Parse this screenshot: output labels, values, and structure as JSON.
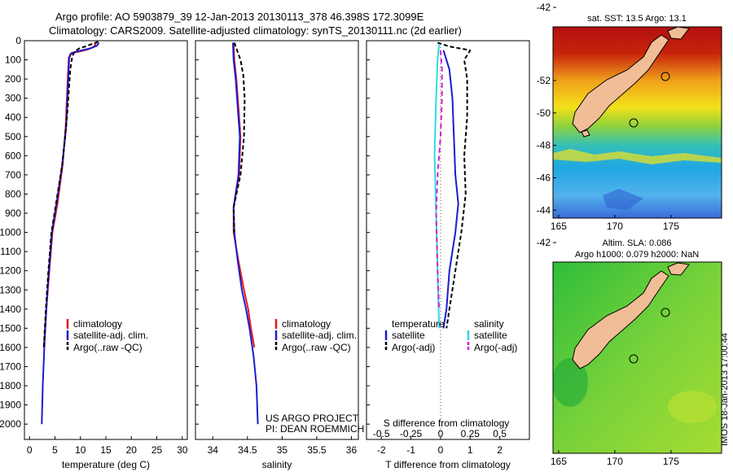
{
  "header": {
    "line1": "Argo profile: AO 5903879_39 12-Jan-2013 20130113_378 46.398S 172.3099E",
    "line2": "Climatology: CARS2009. Satellite-adjusted climatology: synTS_20130111.nc (2d earlier)"
  },
  "colors": {
    "climatology": "#e8161b",
    "satellite": "#1c1ccf",
    "argo": "#000000",
    "satellite_s": "#32d9e6",
    "argo_s": "#d21ed2"
  },
  "chart_data": [
    {
      "name": "temperature-profile",
      "type": "line",
      "xlabel": "temperature (deg C)",
      "ylabel": "",
      "xlim": [
        -1,
        31
      ],
      "ylim": [
        2080,
        0
      ],
      "xticks": [
        0,
        5,
        10,
        15,
        20,
        25,
        30
      ],
      "yticks": [
        0,
        100,
        200,
        300,
        400,
        500,
        600,
        700,
        800,
        900,
        1000,
        1100,
        1200,
        1300,
        1400,
        1500,
        1600,
        1700,
        1800,
        1900,
        2000
      ],
      "legend": [
        "climatology",
        "satellite-adj. clim.",
        "Argo(..raw -QC)"
      ],
      "series": [
        {
          "name": "climatology",
          "color": "#e8161b",
          "dash": "",
          "points": [
            [
              13.1,
              10
            ],
            [
              12.7,
              30
            ],
            [
              11.5,
              45
            ],
            [
              10,
              55
            ],
            [
              8.8,
              62
            ],
            [
              8.0,
              70
            ],
            [
              7.7,
              90
            ],
            [
              7.5,
              200
            ],
            [
              7.1,
              450
            ],
            [
              6.5,
              650
            ],
            [
              5.5,
              850
            ],
            [
              4.5,
              1000
            ],
            [
              3.9,
              1200
            ],
            [
              3.3,
              1400
            ],
            [
              2.8,
              1600
            ]
          ]
        },
        {
          "name": "satellite-adj. clim.",
          "color": "#1c1ccf",
          "dash": "",
          "points": [
            [
              13.6,
              10
            ],
            [
              13.3,
              25
            ],
            [
              12.0,
              40
            ],
            [
              10.3,
              50
            ],
            [
              9.0,
              58
            ],
            [
              8.2,
              65
            ],
            [
              7.8,
              90
            ],
            [
              7.6,
              200
            ],
            [
              7.2,
              450
            ],
            [
              6.4,
              650
            ],
            [
              5.3,
              850
            ],
            [
              4.4,
              1000
            ],
            [
              3.8,
              1200
            ],
            [
              3.3,
              1400
            ],
            [
              2.9,
              1600
            ],
            [
              2.6,
              1800
            ],
            [
              2.4,
              2000
            ]
          ]
        },
        {
          "name": "Argo",
          "color": "#000000",
          "dash": "5,3",
          "points": [
            [
              13.5,
              5
            ],
            [
              12.5,
              15
            ],
            [
              11.0,
              30
            ],
            [
              9.8,
              40
            ],
            [
              8.9,
              55
            ],
            [
              8.4,
              80
            ],
            [
              8.0,
              150
            ],
            [
              7.5,
              350
            ],
            [
              7.0,
              500
            ],
            [
              6.4,
              650
            ],
            [
              5.2,
              850
            ],
            [
              4.3,
              1000
            ],
            [
              3.7,
              1200
            ],
            [
              3.2,
              1400
            ],
            [
              2.8,
              1600
            ]
          ]
        }
      ]
    },
    {
      "name": "salinity-profile",
      "type": "line",
      "xlabel": "salinity",
      "ylabel": "",
      "xlim": [
        33.75,
        36.1
      ],
      "ylim": [
        2080,
        0
      ],
      "xticks": [
        34,
        34.5,
        35,
        35.5,
        36
      ],
      "legend": [
        "climatology",
        "satellite-adj. clim.",
        "Argo(..raw -QC)"
      ],
      "series": [
        {
          "name": "climatology",
          "color": "#e8161b",
          "dash": "",
          "points": [
            [
              34.3,
              10
            ],
            [
              34.31,
              100
            ],
            [
              34.34,
              200
            ],
            [
              34.37,
              350
            ],
            [
              34.4,
              500
            ],
            [
              34.38,
              700
            ],
            [
              34.3,
              870
            ],
            [
              34.3,
              1000
            ],
            [
              34.37,
              1150
            ],
            [
              34.45,
              1300
            ],
            [
              34.51,
              1400
            ],
            [
              34.55,
              1500
            ],
            [
              34.6,
              1600
            ]
          ]
        },
        {
          "name": "satellite-adj. clim.",
          "color": "#1c1ccf",
          "dash": "",
          "points": [
            [
              34.29,
              10
            ],
            [
              34.3,
              100
            ],
            [
              34.33,
              200
            ],
            [
              34.36,
              350
            ],
            [
              34.39,
              500
            ],
            [
              34.37,
              700
            ],
            [
              34.3,
              870
            ],
            [
              34.31,
              1000
            ],
            [
              34.36,
              1150
            ],
            [
              34.42,
              1300
            ],
            [
              34.48,
              1400
            ],
            [
              34.53,
              1500
            ],
            [
              34.59,
              1650
            ],
            [
              34.63,
              1800
            ],
            [
              34.65,
              2000
            ]
          ]
        },
        {
          "name": "Argo",
          "color": "#000000",
          "dash": "5,3",
          "points": [
            [
              34.31,
              10
            ],
            [
              34.33,
              30
            ],
            [
              34.36,
              60
            ],
            [
              34.4,
              100
            ],
            [
              34.44,
              180
            ],
            [
              34.46,
              300
            ],
            [
              34.45,
              500
            ],
            [
              34.4,
              700
            ],
            [
              34.3,
              870
            ],
            [
              34.31,
              1000
            ]
          ]
        }
      ]
    },
    {
      "name": "difference-profile",
      "type": "line",
      "xlabel": "T difference from climatology",
      "xlabel_top": "S difference from climatology",
      "xlim": [
        -2.5,
        3
      ],
      "ylim": [
        2080,
        0
      ],
      "xticks": [
        -2,
        -1,
        0,
        1,
        2
      ],
      "sticks": [
        -0.5,
        -0.25,
        0,
        0.25,
        0.5
      ],
      "legend_headers": [
        "temperature",
        "salinity"
      ],
      "legend": [
        "satellite",
        "Argo(-adj)",
        "satellite",
        "Argo(-adj)"
      ],
      "series": [
        {
          "name": "T satellite",
          "color": "#1c1ccf",
          "dash": "",
          "points": [
            [
              0.1,
              50
            ],
            [
              0.3,
              150
            ],
            [
              0.4,
              300
            ],
            [
              0.45,
              500
            ],
            [
              0.5,
              700
            ],
            [
              0.6,
              850
            ],
            [
              0.5,
              1000
            ],
            [
              0.3,
              1200
            ],
            [
              0.2,
              1400
            ],
            [
              0.1,
              1500
            ]
          ]
        },
        {
          "name": "T Argo(-adj)",
          "color": "#000000",
          "dash": "5,3",
          "points": [
            [
              -0.1,
              10
            ],
            [
              0.3,
              30
            ],
            [
              1.0,
              50
            ],
            [
              0.8,
              100
            ],
            [
              0.9,
              200
            ],
            [
              0.9,
              400
            ],
            [
              0.8,
              600
            ],
            [
              0.85,
              800
            ],
            [
              0.7,
              1000
            ],
            [
              0.5,
              1200
            ],
            [
              0.3,
              1400
            ],
            [
              0.2,
              1500
            ]
          ]
        },
        {
          "name": "S satellite",
          "color": "#32d9e6",
          "dash": "",
          "points": [
            [
              -0.05,
              20
            ],
            [
              -0.1,
              100
            ],
            [
              -0.15,
              300
            ],
            [
              -0.2,
              600
            ],
            [
              -0.15,
              900
            ],
            [
              -0.1,
              1200
            ],
            [
              -0.05,
              1500
            ]
          ]
        },
        {
          "name": "S Argo(-adj)",
          "color": "#d21ed2",
          "dash": "6,4",
          "points": [
            [
              0.0,
              50
            ],
            [
              0.05,
              150
            ],
            [
              0.05,
              300
            ],
            [
              0.0,
              500
            ],
            [
              -0.1,
              700
            ],
            [
              -0.15,
              900
            ],
            [
              -0.1,
              1200
            ],
            [
              -0.05,
              1400
            ]
          ]
        }
      ]
    }
  ],
  "maps": {
    "sst": {
      "title": "sat. SST: 13.5 Argo: 13.1",
      "xticks": [
        165,
        170,
        175
      ],
      "yticks": [
        -42,
        -44,
        -46,
        -48,
        -50,
        -52
      ]
    },
    "sla": {
      "title1": "Altim. SLA: 0.086",
      "title2": "Argo h1000: 0.079 h2000: NaN",
      "xticks": [
        165,
        170,
        175
      ],
      "yticks": [
        -42,
        -44,
        -46,
        -48,
        -50,
        -52
      ]
    }
  },
  "credits": {
    "project": "US ARGO PROJECT",
    "pi": "PI: DEAN ROEMMICH",
    "stamp": "IMOS 18-Jan-2013 17:00:44"
  }
}
